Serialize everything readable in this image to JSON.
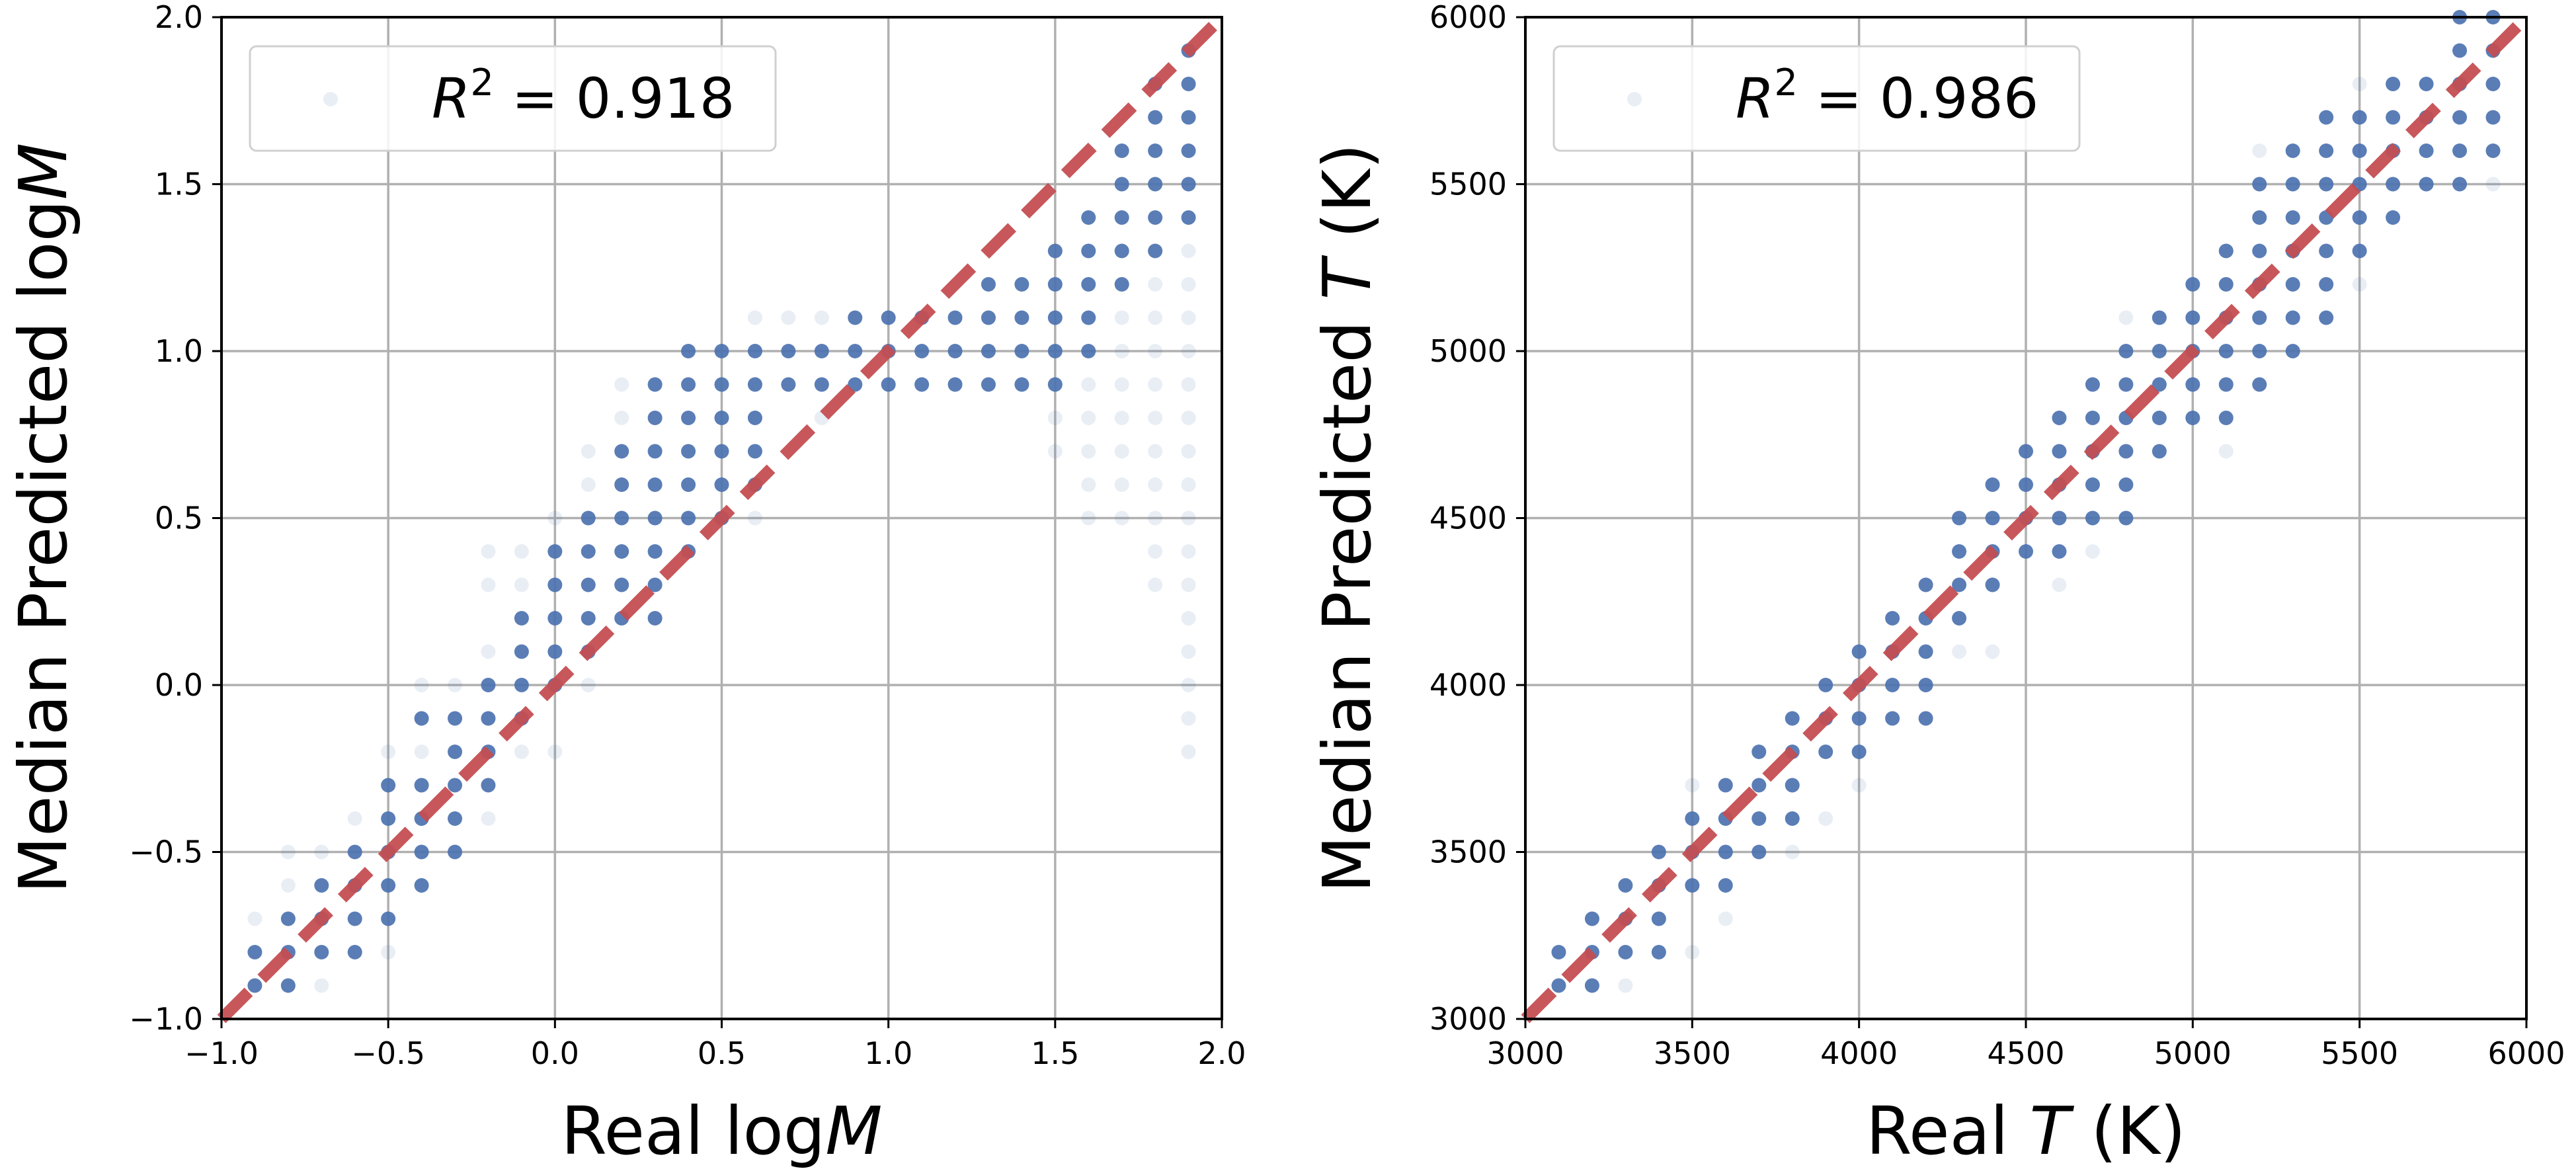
{
  "chart_data": [
    {
      "type": "scatter",
      "xlabel": "Real log",
      "xlabel_var": "M",
      "ylabel": "Median Predicted log",
      "ylabel_var": "M",
      "xlim": [
        -1.0,
        2.0
      ],
      "ylim": [
        -1.0,
        2.0
      ],
      "xticks": [
        -1.0,
        -0.5,
        0.0,
        0.5,
        1.0,
        1.5,
        2.0
      ],
      "yticks": [
        -1.0,
        -0.5,
        0.0,
        0.5,
        1.0,
        1.5,
        2.0
      ],
      "xtick_labels": [
        "−1.0",
        "−0.5",
        "0.0",
        "0.5",
        "1.0",
        "1.5",
        "2.0"
      ],
      "ytick_labels": [
        "−1.0",
        "−0.5",
        "0.0",
        "0.5",
        "1.0",
        "1.5",
        "2.0"
      ],
      "grid": true,
      "legend": {
        "placement": "top-left",
        "text_prefix": "R",
        "text_sup": "2",
        "text_value": " = 0.918"
      },
      "identity_line": {
        "from": [
          -1.0,
          -1.0
        ],
        "to": [
          2.0,
          2.0
        ],
        "color": "#c44e52",
        "style": "dashed"
      },
      "point_color": "#4c72b0",
      "point_rows": [
        {
          "x": -0.9,
          "ys": [
            -0.9,
            -0.8
          ],
          "faint": [
            -0.7
          ]
        },
        {
          "x": -0.8,
          "ys": [
            -0.9,
            -0.8,
            -0.7
          ],
          "faint": [
            -0.6,
            -0.5
          ]
        },
        {
          "x": -0.7,
          "ys": [
            -0.8,
            -0.7,
            -0.6
          ],
          "faint": [
            -0.9,
            -0.5
          ]
        },
        {
          "x": -0.6,
          "ys": [
            -0.8,
            -0.7,
            -0.6,
            -0.5
          ],
          "faint": [
            -0.4
          ]
        },
        {
          "x": -0.5,
          "ys": [
            -0.7,
            -0.6,
            -0.5,
            -0.4,
            -0.3
          ],
          "faint": [
            -0.8,
            -0.2
          ]
        },
        {
          "x": -0.4,
          "ys": [
            -0.6,
            -0.5,
            -0.4,
            -0.3,
            -0.1
          ],
          "faint": [
            -0.2,
            0.0
          ]
        },
        {
          "x": -0.3,
          "ys": [
            -0.5,
            -0.4,
            -0.3,
            -0.2,
            -0.1
          ],
          "faint": [
            0.0
          ]
        },
        {
          "x": -0.2,
          "ys": [
            -0.3,
            -0.2,
            -0.1,
            0.0
          ],
          "faint": [
            -0.4,
            0.1,
            0.3,
            0.4
          ]
        },
        {
          "x": -0.1,
          "ys": [
            -0.1,
            0.0,
            0.1,
            0.2
          ],
          "faint": [
            -0.2,
            0.3,
            0.4
          ]
        },
        {
          "x": 0.0,
          "ys": [
            0.0,
            0.1,
            0.2,
            0.3,
            0.4
          ],
          "faint": [
            -0.2,
            0.5
          ]
        },
        {
          "x": 0.1,
          "ys": [
            0.1,
            0.2,
            0.3,
            0.4,
            0.5
          ],
          "faint": [
            0.0,
            0.6,
            0.7
          ]
        },
        {
          "x": 0.2,
          "ys": [
            0.2,
            0.3,
            0.4,
            0.5,
            0.6,
            0.7
          ],
          "faint": [
            0.8,
            0.9
          ]
        },
        {
          "x": 0.3,
          "ys": [
            0.2,
            0.3,
            0.4,
            0.5,
            0.6,
            0.7,
            0.8,
            0.9
          ]
        },
        {
          "x": 0.4,
          "ys": [
            0.4,
            0.5,
            0.6,
            0.7,
            0.8,
            0.9,
            1.0
          ]
        },
        {
          "x": 0.5,
          "ys": [
            0.5,
            0.6,
            0.7,
            0.8,
            0.9,
            1.0
          ]
        },
        {
          "x": 0.6,
          "ys": [
            0.6,
            0.7,
            0.8,
            0.9,
            1.0
          ],
          "faint": [
            0.5,
            1.1
          ]
        },
        {
          "x": 0.7,
          "ys": [
            0.9,
            1.0
          ],
          "faint": [
            1.1
          ]
        },
        {
          "x": 0.8,
          "ys": [
            0.9,
            1.0
          ],
          "faint": [
            0.8,
            1.1
          ]
        },
        {
          "x": 0.9,
          "ys": [
            0.9,
            1.0,
            1.1
          ]
        },
        {
          "x": 1.0,
          "ys": [
            0.9,
            1.0,
            1.1
          ]
        },
        {
          "x": 1.1,
          "ys": [
            0.9,
            1.0,
            1.1
          ]
        },
        {
          "x": 1.2,
          "ys": [
            0.9,
            1.0,
            1.1
          ]
        },
        {
          "x": 1.3,
          "ys": [
            0.9,
            1.0,
            1.1,
            1.2
          ]
        },
        {
          "x": 1.4,
          "ys": [
            0.9,
            1.0,
            1.1,
            1.2
          ]
        },
        {
          "x": 1.5,
          "ys": [
            0.9,
            1.0,
            1.1,
            1.2,
            1.3
          ],
          "faint": [
            0.8,
            0.7
          ]
        },
        {
          "x": 1.6,
          "ys": [
            1.0,
            1.1,
            1.2,
            1.3,
            1.4
          ],
          "faint": [
            0.9,
            0.8,
            0.7,
            0.6,
            0.5
          ]
        },
        {
          "x": 1.7,
          "ys": [
            1.2,
            1.3,
            1.4,
            1.5,
            1.6
          ],
          "faint": [
            1.1,
            1.0,
            0.9,
            0.8,
            0.7,
            0.6,
            0.5
          ]
        },
        {
          "x": 1.8,
          "ys": [
            1.3,
            1.4,
            1.5,
            1.6,
            1.7,
            1.8
          ],
          "faint": [
            1.2,
            1.1,
            1.0,
            0.9,
            0.8,
            0.7,
            0.6,
            0.5,
            0.4,
            0.3
          ]
        },
        {
          "x": 1.9,
          "ys": [
            1.4,
            1.5,
            1.6,
            1.7,
            1.8,
            1.9
          ],
          "faint": [
            1.3,
            1.2,
            1.1,
            1.0,
            0.9,
            0.8,
            0.7,
            0.6,
            0.5,
            0.4,
            0.3,
            0.2,
            0.1,
            0.0,
            -0.1,
            -0.2
          ]
        }
      ]
    },
    {
      "type": "scatter",
      "xlabel": "Real ",
      "xlabel_var": "T",
      "xlabel_suffix": " (K)",
      "ylabel": "Median Predicted ",
      "ylabel_var": "T",
      "ylabel_suffix": " (K)",
      "xlim": [
        3000,
        6000
      ],
      "ylim": [
        3000,
        6000
      ],
      "xticks": [
        3000,
        3500,
        4000,
        4500,
        5000,
        5500,
        6000
      ],
      "yticks": [
        3000,
        3500,
        4000,
        4500,
        5000,
        5500,
        6000
      ],
      "xtick_labels": [
        "3000",
        "3500",
        "4000",
        "4500",
        "5000",
        "5500",
        "6000"
      ],
      "ytick_labels": [
        "3000",
        "3500",
        "4000",
        "4500",
        "5000",
        "5500",
        "6000"
      ],
      "grid": true,
      "legend": {
        "placement": "top-left",
        "text_prefix": "R",
        "text_sup": "2",
        "text_value": " = 0.986"
      },
      "identity_line": {
        "from": [
          3000,
          3000
        ],
        "to": [
          6000,
          6000
        ],
        "color": "#c44e52",
        "style": "dashed"
      },
      "point_color": "#4c72b0",
      "point_rows": [
        {
          "x": 3100,
          "ys": [
            3100,
            3200
          ]
        },
        {
          "x": 3200,
          "ys": [
            3100,
            3200,
            3300
          ]
        },
        {
          "x": 3300,
          "ys": [
            3200,
            3300,
            3400
          ],
          "faint": [
            3100
          ]
        },
        {
          "x": 3400,
          "ys": [
            3200,
            3300,
            3400,
            3500
          ]
        },
        {
          "x": 3500,
          "ys": [
            3400,
            3500,
            3600
          ],
          "faint": [
            3200,
            3700
          ]
        },
        {
          "x": 3600,
          "ys": [
            3400,
            3500,
            3600,
            3700
          ],
          "faint": [
            3300
          ]
        },
        {
          "x": 3700,
          "ys": [
            3500,
            3600,
            3700,
            3800
          ]
        },
        {
          "x": 3800,
          "ys": [
            3600,
            3700,
            3800,
            3900
          ],
          "faint": [
            3500
          ]
        },
        {
          "x": 3900,
          "ys": [
            3800,
            3900,
            4000
          ],
          "faint": [
            3600
          ]
        },
        {
          "x": 4000,
          "ys": [
            3800,
            3900,
            4000,
            4100
          ],
          "faint": [
            3700
          ]
        },
        {
          "x": 4100,
          "ys": [
            3900,
            4000,
            4100,
            4200
          ]
        },
        {
          "x": 4200,
          "ys": [
            3900,
            4000,
            4100,
            4200,
            4300
          ]
        },
        {
          "x": 4300,
          "ys": [
            4200,
            4300,
            4400,
            4500
          ],
          "faint": [
            4100
          ]
        },
        {
          "x": 4400,
          "ys": [
            4300,
            4400,
            4500,
            4600
          ],
          "faint": [
            4100
          ]
        },
        {
          "x": 4500,
          "ys": [
            4400,
            4500,
            4600,
            4700
          ]
        },
        {
          "x": 4600,
          "ys": [
            4400,
            4500,
            4600,
            4700,
            4800
          ],
          "faint": [
            4300
          ]
        },
        {
          "x": 4700,
          "ys": [
            4500,
            4600,
            4700,
            4800,
            4900
          ],
          "faint": [
            4400
          ]
        },
        {
          "x": 4800,
          "ys": [
            4500,
            4600,
            4700,
            4800,
            4900,
            5000
          ],
          "faint": [
            5100
          ]
        },
        {
          "x": 4900,
          "ys": [
            4700,
            4800,
            4900,
            5000,
            5100
          ]
        },
        {
          "x": 5000,
          "ys": [
            4800,
            4900,
            5000,
            5100,
            5200
          ]
        },
        {
          "x": 5100,
          "ys": [
            4800,
            4900,
            5000,
            5100,
            5200,
            5300
          ],
          "faint": [
            4700
          ]
        },
        {
          "x": 5200,
          "ys": [
            4900,
            5000,
            5100,
            5200,
            5300,
            5400,
            5500
          ],
          "faint": [
            5600
          ]
        },
        {
          "x": 5300,
          "ys": [
            5000,
            5100,
            5200,
            5300,
            5400,
            5500,
            5600
          ]
        },
        {
          "x": 5400,
          "ys": [
            5100,
            5200,
            5300,
            5400,
            5500,
            5600,
            5700
          ]
        },
        {
          "x": 5500,
          "ys": [
            5300,
            5400,
            5500,
            5600,
            5700
          ],
          "faint": [
            5200,
            5800
          ]
        },
        {
          "x": 5600,
          "ys": [
            5400,
            5500,
            5600,
            5700,
            5800
          ]
        },
        {
          "x": 5700,
          "ys": [
            5500,
            5600,
            5700,
            5800
          ]
        },
        {
          "x": 5800,
          "ys": [
            5500,
            5600,
            5700,
            5800,
            5900,
            6000
          ]
        },
        {
          "x": 5900,
          "ys": [
            5600,
            5700,
            5800,
            5900,
            6000
          ],
          "faint": [
            5500
          ]
        }
      ]
    }
  ]
}
